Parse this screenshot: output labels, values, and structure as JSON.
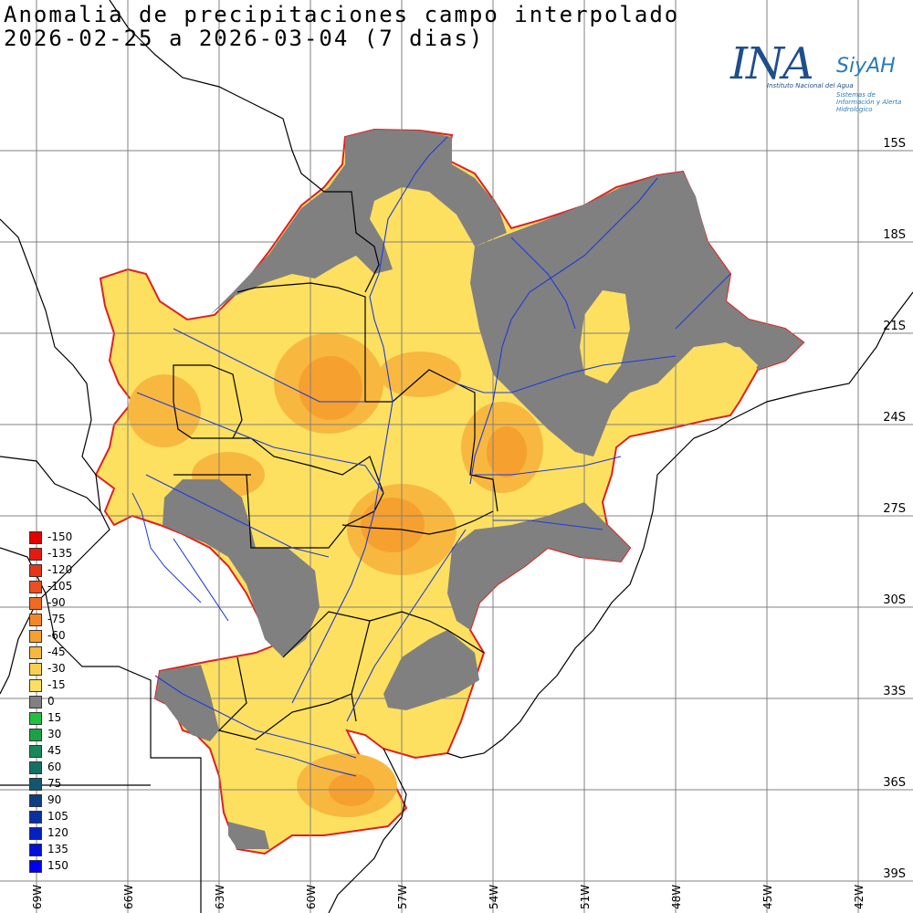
{
  "title": {
    "line1": "Anomalia de precipitaciones campo interpolado",
    "line2": "2026-02-25 a 2026-03-04 (7 dias)"
  },
  "logo": {
    "ina": "INA",
    "siyah": "SiyAH",
    "institute": "Instituto Nacional del Agua",
    "system": "Sistemas de Información y Alerta Hidrológico"
  },
  "colors": {
    "grid": "#808080",
    "border": "#000000",
    "coast": "#000000",
    "rivers": "#1e3ad8",
    "basin_outline": "#e02020",
    "neutral": "#808080"
  },
  "lat_labels": [
    "15S",
    "18S",
    "21S",
    "24S",
    "27S",
    "30S",
    "33S",
    "36S",
    "39S"
  ],
  "lon_labels": [
    "69W",
    "66W",
    "63W",
    "60W",
    "57W",
    "54W",
    "51W",
    "48W",
    "45W",
    "42W"
  ],
  "legend": [
    {
      "label": "-150",
      "color": "#e00000"
    },
    {
      "label": "-135",
      "color": "#e41a10"
    },
    {
      "label": "-120",
      "color": "#e83418"
    },
    {
      "label": "-105",
      "color": "#ec4e20"
    },
    {
      "label": "-90",
      "color": "#f06a20"
    },
    {
      "label": "-75",
      "color": "#f48628"
    },
    {
      "label": "-60",
      "color": "#f6a030"
    },
    {
      "label": "-45",
      "color": "#f8b840"
    },
    {
      "label": "-30",
      "color": "#fad050"
    },
    {
      "label": "-15",
      "color": "#fde060"
    },
    {
      "label": "0",
      "color": "#808080"
    },
    {
      "label": "15",
      "color": "#22c040"
    },
    {
      "label": "30",
      "color": "#1ea048"
    },
    {
      "label": "45",
      "color": "#18885a"
    },
    {
      "label": "60",
      "color": "#147064"
    },
    {
      "label": "75",
      "color": "#10586e"
    },
    {
      "label": "90",
      "color": "#0c4080"
    },
    {
      "label": "105",
      "color": "#0830a0"
    },
    {
      "label": "120",
      "color": "#0420c0"
    },
    {
      "label": "135",
      "color": "#0210d8"
    },
    {
      "label": "150",
      "color": "#0000f0"
    }
  ]
}
